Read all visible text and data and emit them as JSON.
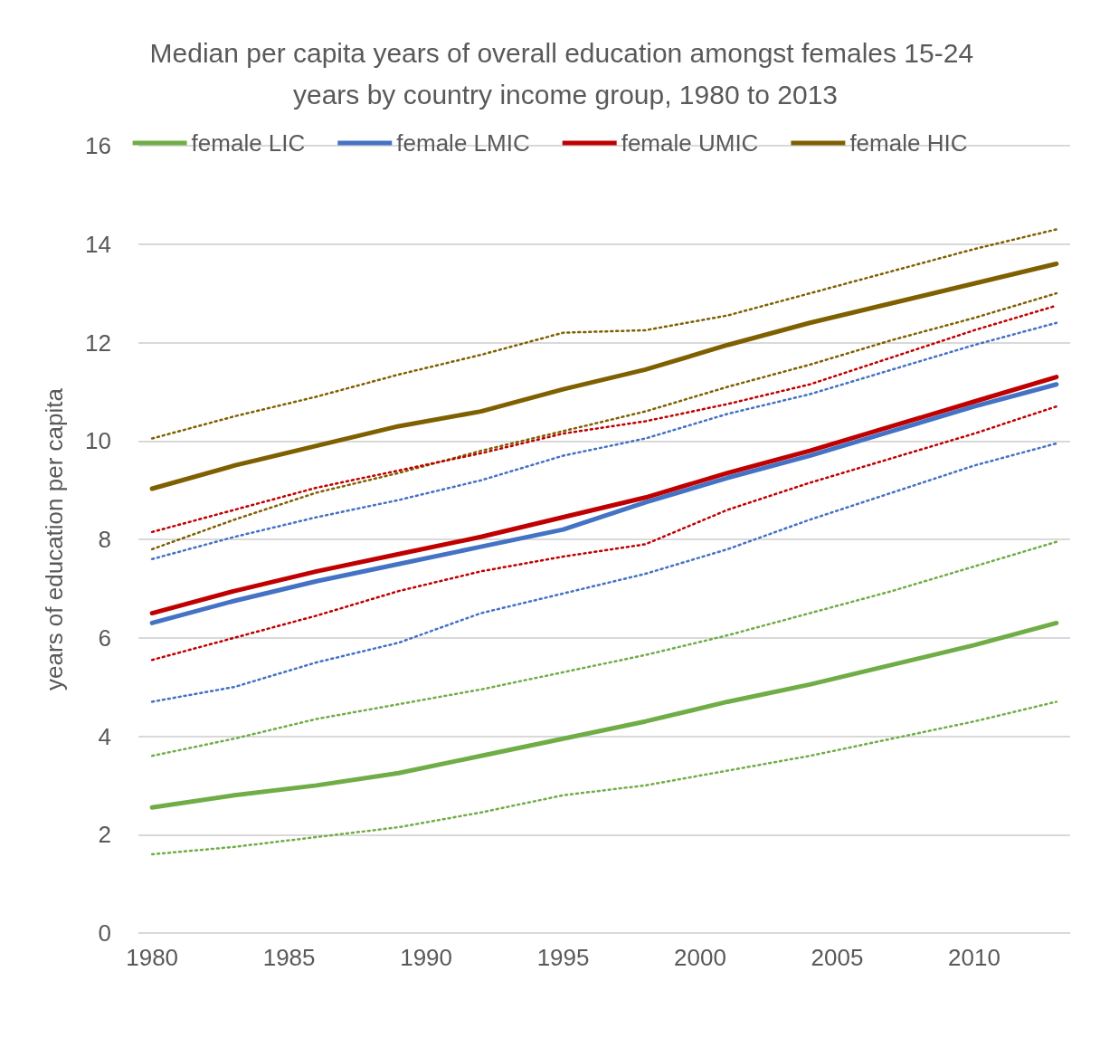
{
  "chart_data": {
    "type": "line",
    "title": "Median per capita years of overall education amongst females 15-24 years by country income group, 1980 to 2013",
    "ylabel": "years of education per capita",
    "x": [
      1980,
      1983,
      1986,
      1989,
      1992,
      1995,
      1998,
      2001,
      2004,
      2007,
      2010,
      2013
    ],
    "xlim": [
      1979.5,
      2013.5
    ],
    "xticks": [
      1980,
      1985,
      1990,
      1995,
      2000,
      2005,
      2010
    ],
    "ylim": [
      0,
      16
    ],
    "yticks": [
      0,
      2,
      4,
      6,
      8,
      10,
      12,
      14,
      16
    ],
    "grid": "y",
    "legend": "top",
    "marker": "none",
    "series": [
      {
        "name": "female LIC",
        "color": "#70ad47",
        "line_style": "solid",
        "values": [
          2.55,
          2.8,
          3.0,
          3.25,
          3.6,
          3.95,
          4.3,
          4.7,
          5.05,
          5.45,
          5.85,
          6.3
        ]
      },
      {
        "name": "female LMIC",
        "color": "#4472c4",
        "line_style": "solid",
        "values": [
          6.3,
          6.75,
          7.15,
          7.5,
          7.85,
          8.2,
          8.75,
          9.25,
          9.7,
          10.2,
          10.7,
          11.15
        ]
      },
      {
        "name": "female UMIC",
        "color": "#c00000",
        "line_style": "solid",
        "values": [
          6.5,
          6.95,
          7.35,
          7.7,
          8.05,
          8.45,
          8.85,
          9.35,
          9.8,
          10.3,
          10.8,
          11.3
        ]
      },
      {
        "name": "female HIC",
        "color": "#7f6000",
        "line_style": "solid",
        "values": [
          9.03,
          9.5,
          9.9,
          10.3,
          10.6,
          11.05,
          11.45,
          11.95,
          12.4,
          12.8,
          13.2,
          13.6
        ]
      },
      {
        "color": "#7f6000",
        "line_style": "dotted",
        "values": [
          10.05,
          10.5,
          10.9,
          11.35,
          11.75,
          12.2,
          12.25,
          12.55,
          13.0,
          13.45,
          13.9,
          14.3
        ]
      },
      {
        "color": "#7f6000",
        "line_style": "dotted",
        "values": [
          7.8,
          8.4,
          8.95,
          9.35,
          9.8,
          10.2,
          10.6,
          11.1,
          11.55,
          12.05,
          12.5,
          13.0
        ]
      },
      {
        "color": "#c00000",
        "line_style": "dotted",
        "values": [
          8.15,
          8.6,
          9.05,
          9.4,
          9.75,
          10.15,
          10.4,
          10.75,
          11.15,
          11.7,
          12.25,
          12.75
        ]
      },
      {
        "color": "#c00000",
        "line_style": "dotted",
        "values": [
          5.55,
          6.0,
          6.45,
          6.95,
          7.35,
          7.65,
          7.9,
          8.6,
          9.15,
          9.65,
          10.15,
          10.7
        ]
      },
      {
        "color": "#4472c4",
        "line_style": "dotted",
        "values": [
          7.6,
          8.05,
          8.45,
          8.8,
          9.2,
          9.7,
          10.05,
          10.55,
          10.95,
          11.45,
          11.95,
          12.4
        ]
      },
      {
        "color": "#4472c4",
        "line_style": "dotted",
        "values": [
          4.7,
          5.0,
          5.5,
          5.9,
          6.5,
          6.9,
          7.3,
          7.8,
          8.4,
          8.95,
          9.5,
          9.95
        ]
      },
      {
        "color": "#70ad47",
        "line_style": "dotted",
        "values": [
          3.6,
          3.95,
          4.35,
          4.65,
          4.95,
          5.3,
          5.65,
          6.05,
          6.5,
          6.95,
          7.45,
          7.95
        ]
      },
      {
        "color": "#70ad47",
        "line_style": "dotted",
        "values": [
          1.6,
          1.75,
          1.95,
          2.15,
          2.45,
          2.8,
          3.0,
          3.3,
          3.6,
          3.95,
          4.3,
          4.7
        ]
      }
    ]
  }
}
